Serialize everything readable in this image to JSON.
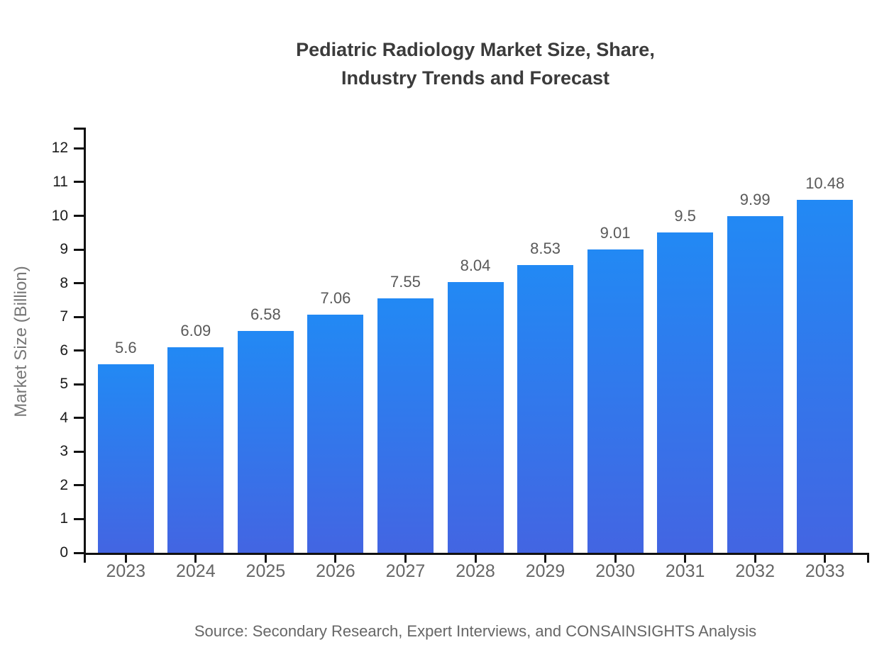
{
  "chart_data": {
    "type": "bar",
    "title": "Pediatric Radiology Market Size, Share, Industry Trends and Forecast",
    "title_line1": "Pediatric Radiology Market Size, Share,",
    "title_line2": "Industry Trends and Forecast",
    "categories": [
      "2023",
      "2024",
      "2025",
      "2026",
      "2027",
      "2028",
      "2029",
      "2030",
      "2031",
      "2032",
      "2033"
    ],
    "values": [
      5.6,
      6.09,
      6.58,
      7.06,
      7.55,
      8.04,
      8.53,
      9.01,
      9.5,
      9.99,
      10.48
    ],
    "value_labels": [
      "5.6",
      "6.09",
      "6.58",
      "7.06",
      "7.55",
      "8.04",
      "8.53",
      "9.01",
      "9.5",
      "9.99",
      "10.48"
    ],
    "xlabel": "",
    "ylabel": "Market Size (Billion)",
    "yticks": [
      0,
      1,
      2,
      3,
      4,
      5,
      6,
      7,
      8,
      9,
      10,
      11,
      12
    ],
    "ylim": [
      0,
      12.6
    ],
    "grid": "off",
    "legend": "none",
    "source": "Source: Secondary Research, Expert Interviews, and CONSAINSIGHTS Analysis",
    "colors": {
      "bar_gradient_top": "#2289f4",
      "bar_gradient_bottom": "#4365e2",
      "axis": "#111111",
      "ytick_label": "#1a1a1a",
      "xtick_label": "#666666",
      "bar_label": "#595959",
      "title": "#3b3b3b",
      "axis_title": "#777777",
      "source": "#666666"
    }
  }
}
